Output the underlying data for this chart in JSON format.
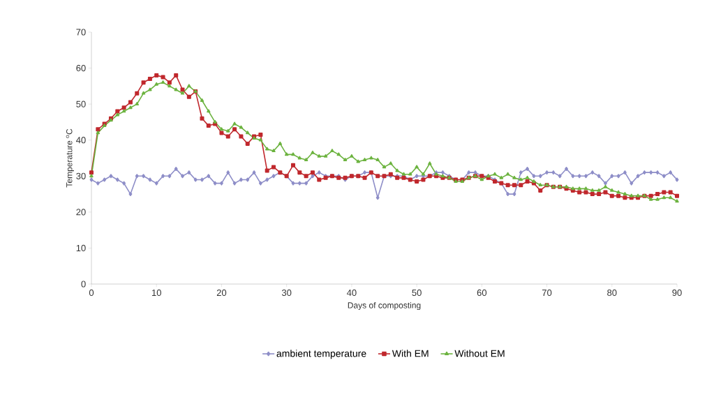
{
  "chart_data": {
    "type": "line",
    "xlabel": "Days of composting",
    "ylabel": "Temperature $^{o}$C",
    "x": [
      0,
      1,
      2,
      3,
      4,
      5,
      6,
      7,
      8,
      9,
      10,
      11,
      12,
      13,
      14,
      15,
      16,
      17,
      18,
      19,
      20,
      21,
      22,
      23,
      24,
      25,
      26,
      27,
      28,
      29,
      30,
      31,
      32,
      33,
      34,
      35,
      36,
      37,
      38,
      39,
      40,
      41,
      42,
      43,
      44,
      45,
      46,
      47,
      48,
      49,
      50,
      51,
      52,
      53,
      54,
      55,
      56,
      57,
      58,
      59,
      60,
      61,
      62,
      63,
      64,
      65,
      66,
      67,
      68,
      69,
      70,
      71,
      72,
      73,
      74,
      75,
      76,
      77,
      78,
      79,
      80,
      81,
      82,
      83,
      84,
      85,
      86,
      87,
      88,
      89,
      90
    ],
    "xlim": [
      0,
      90
    ],
    "xticks": [
      0,
      10,
      20,
      30,
      40,
      50,
      60,
      70,
      80,
      90
    ],
    "ylim": [
      0,
      70
    ],
    "yticks": [
      0,
      10,
      20,
      30,
      40,
      50,
      60,
      70
    ],
    "grid": false,
    "legend": "bottom",
    "line_style": "solid",
    "series": [
      {
        "name": "ambient temperature",
        "color": "#8e8ec8",
        "marker": "diamond",
        "values": [
          29,
          28,
          29,
          30,
          29,
          28,
          25,
          30,
          30,
          29,
          28,
          30,
          30,
          32,
          30,
          31,
          29,
          29,
          30,
          28,
          28,
          31,
          28,
          29,
          29,
          31,
          28,
          29,
          30,
          31,
          30,
          28,
          28,
          28,
          30,
          31,
          30,
          30,
          30,
          29,
          30,
          30,
          31,
          31,
          24,
          30,
          30,
          30,
          30,
          29,
          30,
          30,
          30,
          31,
          31,
          30,
          29,
          29,
          31,
          31,
          30,
          30,
          29,
          28,
          25,
          25,
          31,
          32,
          30,
          30,
          31,
          31,
          30,
          32,
          30,
          30,
          30,
          31,
          30,
          28,
          30,
          30,
          31,
          28,
          30,
          31,
          31,
          31,
          30,
          31,
          29
        ]
      },
      {
        "name": "With EM",
        "color": "#c0282d",
        "marker": "square",
        "values": [
          31,
          43,
          44.5,
          46,
          48,
          49,
          50.5,
          53,
          56,
          57,
          58,
          57.5,
          56,
          58,
          54,
          52,
          53.5,
          46,
          44,
          44.5,
          42,
          41,
          43,
          41,
          39,
          41,
          41.5,
          31.5,
          32.5,
          31,
          30,
          33,
          31,
          30,
          31,
          29,
          29.5,
          30,
          29.5,
          29.5,
          30,
          30,
          29.5,
          31,
          30,
          30,
          30.5,
          29.5,
          29.5,
          29,
          28.5,
          29,
          30,
          30,
          29.5,
          29.5,
          29,
          29,
          29.5,
          30,
          30,
          29.5,
          28.5,
          28,
          27.5,
          27.5,
          27.5,
          28.5,
          28,
          26,
          27.5,
          27,
          27,
          26.5,
          26,
          25.5,
          25.5,
          25,
          25,
          25.5,
          24.5,
          24.5,
          24,
          24,
          24,
          24.5,
          24.5,
          25,
          25.5,
          25.5,
          24.5
        ]
      },
      {
        "name": "Without EM",
        "color": "#6cb33f",
        "marker": "triangle",
        "values": [
          30,
          42,
          44,
          45.5,
          47,
          48,
          49,
          50,
          53,
          54,
          55.5,
          56,
          55,
          54,
          53,
          55,
          53.5,
          51,
          48,
          45,
          43,
          42.5,
          44.5,
          43.5,
          42,
          40.5,
          40,
          37.5,
          37,
          39,
          36,
          36,
          35,
          34.5,
          36.5,
          35.5,
          35.5,
          37,
          36,
          34.5,
          35.5,
          34,
          34.5,
          35,
          34.5,
          32.5,
          33.5,
          31.5,
          30.5,
          30.5,
          32.5,
          30.5,
          33.5,
          30.5,
          30,
          29.5,
          28.5,
          28.5,
          29.5,
          30,
          29,
          30,
          30.5,
          29.5,
          30.5,
          29.5,
          29,
          29.5,
          28.5,
          27.5,
          27.5,
          27,
          27,
          27,
          26.5,
          26.5,
          26.5,
          26,
          26,
          27,
          26,
          25.5,
          25,
          24.5,
          24.5,
          24.5,
          23.5,
          23.5,
          24,
          24,
          23
        ]
      }
    ]
  }
}
